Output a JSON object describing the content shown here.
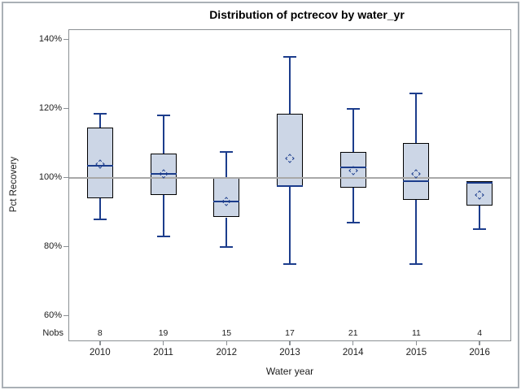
{
  "title": "Distribution of pctrecov by water_yr",
  "chart_data": {
    "type": "boxplot",
    "title": "Distribution of pctrecov by water_yr",
    "xlabel": "Water year",
    "ylabel": "Pct Recovery",
    "nobs_label": "Nobs",
    "categories": [
      "2010",
      "2011",
      "2012",
      "2013",
      "2014",
      "2015",
      "2016"
    ],
    "nobs": [
      8,
      19,
      15,
      17,
      21,
      11,
      4
    ],
    "series": [
      {
        "category": "2010",
        "nobs": 8,
        "min": 88,
        "q1": 94,
        "median": 103.5,
        "mean": 104,
        "q3": 114.5,
        "max": 118.5
      },
      {
        "category": "2011",
        "nobs": 19,
        "min": 83,
        "q1": 95,
        "median": 101,
        "mean": 101,
        "q3": 107,
        "max": 118
      },
      {
        "category": "2012",
        "nobs": 15,
        "min": 80,
        "q1": 88.5,
        "median": 93,
        "mean": 93,
        "q3": 100,
        "max": 107.5
      },
      {
        "category": "2013",
        "nobs": 17,
        "min": 75,
        "q1": 97.5,
        "median": 97.5,
        "mean": 105.5,
        "q3": 118.5,
        "max": 135
      },
      {
        "category": "2014",
        "nobs": 21,
        "min": 87,
        "q1": 97,
        "median": 103,
        "mean": 102,
        "q3": 107.5,
        "max": 120
      },
      {
        "category": "2015",
        "nobs": 11,
        "min": 75,
        "q1": 93.5,
        "median": 99,
        "mean": 101,
        "q3": 110,
        "max": 124.5
      },
      {
        "category": "2016",
        "nobs": 4,
        "min": 85,
        "q1": 92,
        "median": 98.5,
        "mean": 95,
        "q3": 99,
        "max": 99
      }
    ],
    "yticks": [
      140,
      120,
      100,
      80,
      60
    ],
    "ytick_labels": [
      "140%",
      "120%",
      "100%",
      "80%",
      "60%"
    ],
    "ylim": [
      52.6,
      143.0
    ],
    "refline": 100,
    "grid": false,
    "legend": "none",
    "colors": {
      "box_fill": "#ccd6e6",
      "box_border": "#000000",
      "whisker": "#1c3d8c",
      "median": "#1c3d8c",
      "mean_marker": "#1c3d8c",
      "refline": "#a8a8a8",
      "frame": "#8b9094",
      "text": "#1c1c1c"
    }
  }
}
